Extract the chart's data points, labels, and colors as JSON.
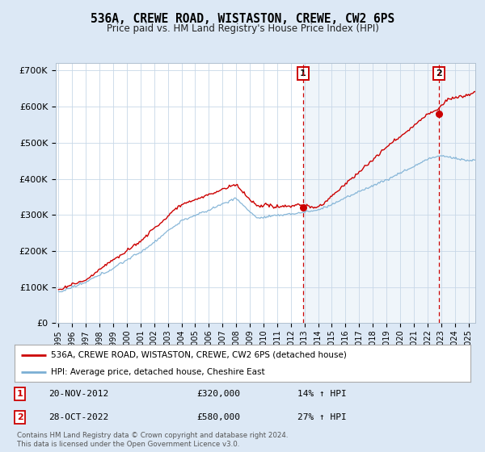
{
  "title": "536A, CREWE ROAD, WISTASTON, CREWE, CW2 6PS",
  "subtitle": "Price paid vs. HM Land Registry's House Price Index (HPI)",
  "background_color": "#dce8f5",
  "plot_bg_color": "#ffffff",
  "hpi_color": "#7bafd4",
  "price_color": "#cc0000",
  "vline_color": "#cc0000",
  "annotation_box_color": "#cc0000",
  "ylim": [
    0,
    720000
  ],
  "yticks": [
    0,
    100000,
    200000,
    300000,
    400000,
    500000,
    600000,
    700000
  ],
  "ytick_labels": [
    "£0",
    "£100K",
    "£200K",
    "£300K",
    "£400K",
    "£500K",
    "£600K",
    "£700K"
  ],
  "xlim_start": 1994.8,
  "xlim_end": 2025.5,
  "xtick_years": [
    1995,
    1996,
    1997,
    1998,
    1999,
    2000,
    2001,
    2002,
    2003,
    2004,
    2005,
    2006,
    2007,
    2008,
    2009,
    2010,
    2011,
    2012,
    2013,
    2014,
    2015,
    2016,
    2017,
    2018,
    2019,
    2020,
    2021,
    2022,
    2023,
    2024,
    2025
  ],
  "sale1_x": 2012.9,
  "sale1_y": 320000,
  "sale2_x": 2022.83,
  "sale2_y": 580000,
  "legend_line1": "536A, CREWE ROAD, WISTASTON, CREWE, CW2 6PS (detached house)",
  "legend_line2": "HPI: Average price, detached house, Cheshire East",
  "note1_date": "20-NOV-2012",
  "note1_price": "£320,000",
  "note1_hpi": "14% ↑ HPI",
  "note2_date": "28-OCT-2022",
  "note2_price": "£580,000",
  "note2_hpi": "27% ↑ HPI",
  "footer": "Contains HM Land Registry data © Crown copyright and database right 2024.\nThis data is licensed under the Open Government Licence v3.0."
}
